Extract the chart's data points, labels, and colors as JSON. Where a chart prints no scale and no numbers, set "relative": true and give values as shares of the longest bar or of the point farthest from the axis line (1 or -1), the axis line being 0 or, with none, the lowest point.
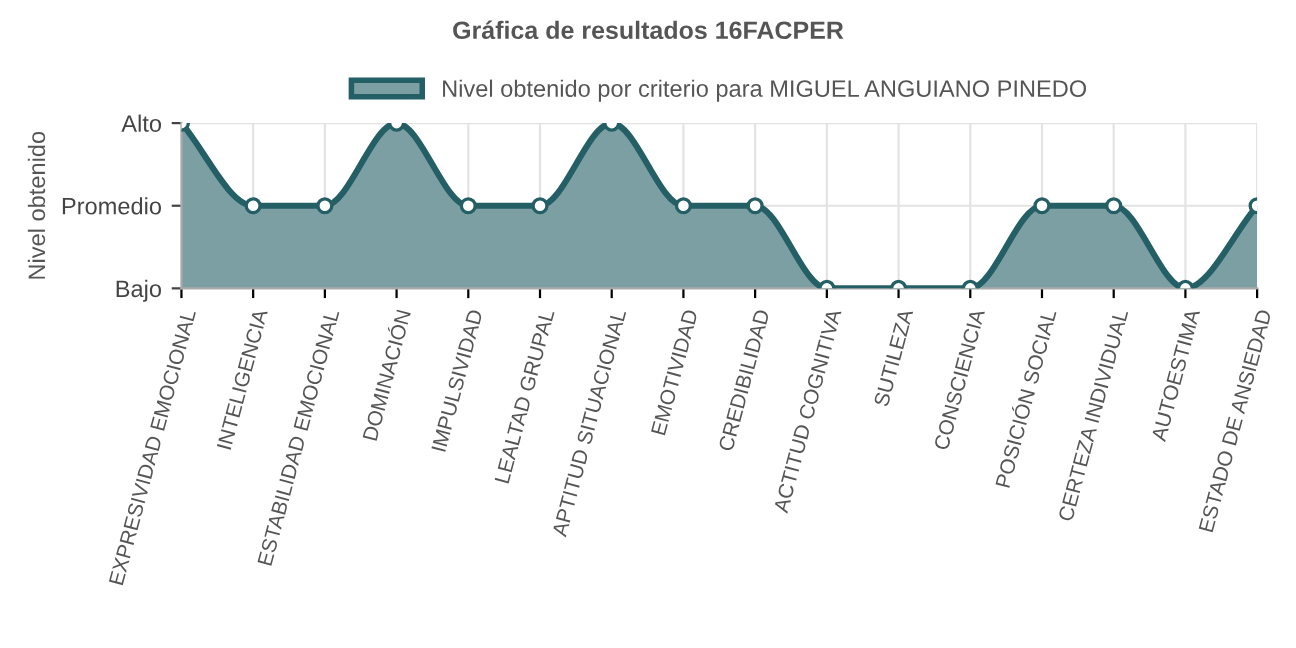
{
  "chart_data": {
    "type": "area",
    "title": "Gráfica de resultados 16FACPER",
    "ylabel": "Nivel obtenido",
    "categories": [
      "EXPRESIVIDAD EMOCIONAL",
      "INTELIGENCIA",
      "ESTABILIDAD EMOCIONAL",
      "DOMINACIÓN",
      "IMPULSIVIDAD",
      "LEALTAD GRUPAL",
      "APTITUD SITUACIONAL",
      "EMOTIVIDAD",
      "CREDIBILIDAD",
      "ACTITUD COGNITIVA",
      "SUTILEZA",
      "CONSCIENCIA",
      "POSICIÓN SOCIAL",
      "CERTEZA INDIVIDUAL",
      "AUTOESTIMA",
      "ESTADO DE ANSIEDAD"
    ],
    "y_categories": [
      "Alto",
      "Promedio",
      "Bajo"
    ],
    "relative": true,
    "series": [
      {
        "name": "Nivel obtenido por criterio para MIGUEL ANGUIANO PINEDO",
        "color": "#255f66",
        "values": [
          1,
          0.5,
          0.5,
          1,
          0.5,
          0.5,
          1,
          0.5,
          0.5,
          0,
          0,
          0,
          0.5,
          0.5,
          0,
          0.5
        ]
      }
    ],
    "grid": true,
    "legend": "top",
    "marker": "circle",
    "line_style": "solid"
  }
}
